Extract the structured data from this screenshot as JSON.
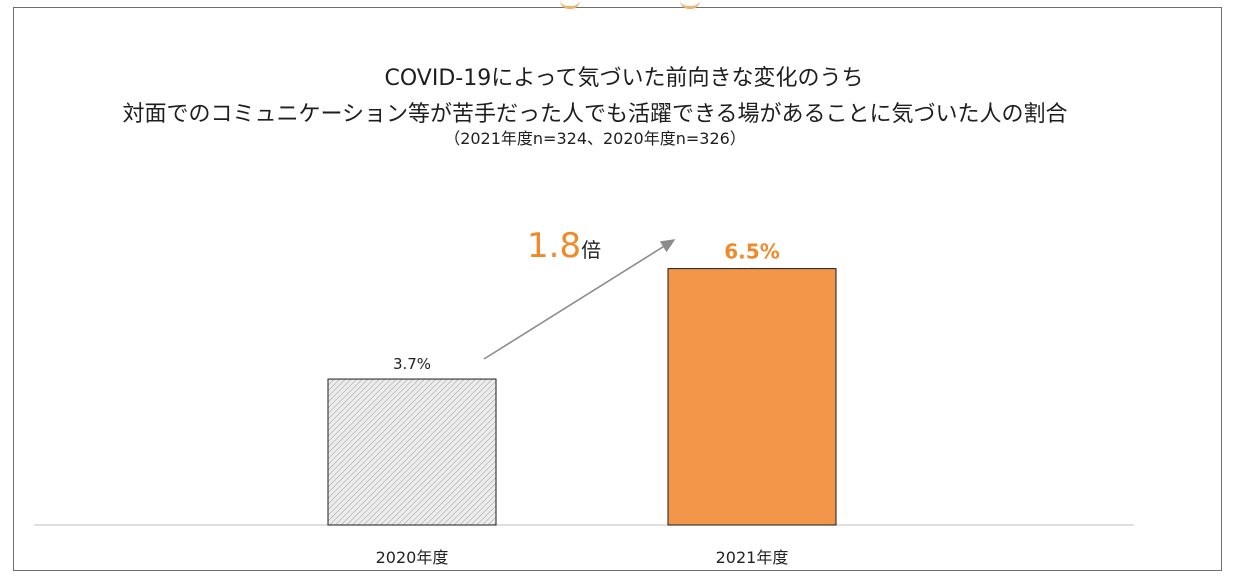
{
  "chart_data": {
    "type": "bar",
    "title_line1": "COVID-19によって気づいた前向きな変化のうち",
    "title_line2": "対面でのコミュニケーション等が苦手だった人でも活躍できる場があることに気づいた人の割合",
    "subtitle": "（2021年度n=324、2020年度n=326）",
    "categories": [
      "2020年度",
      "2021年度"
    ],
    "values": [
      3.7,
      6.5
    ],
    "value_labels": [
      "3.7%",
      "6.5%"
    ],
    "ylim": [
      0,
      7.2
    ],
    "xlabel": "",
    "ylabel": "",
    "annotation": {
      "number": "1.8",
      "unit": "倍"
    },
    "colors": {
      "bar_2020_fill": "#dcdcdc",
      "bar_2021_fill": "#f4964a",
      "highlight": "#ef8a2b",
      "arrow": "#8c8c8c"
    }
  }
}
